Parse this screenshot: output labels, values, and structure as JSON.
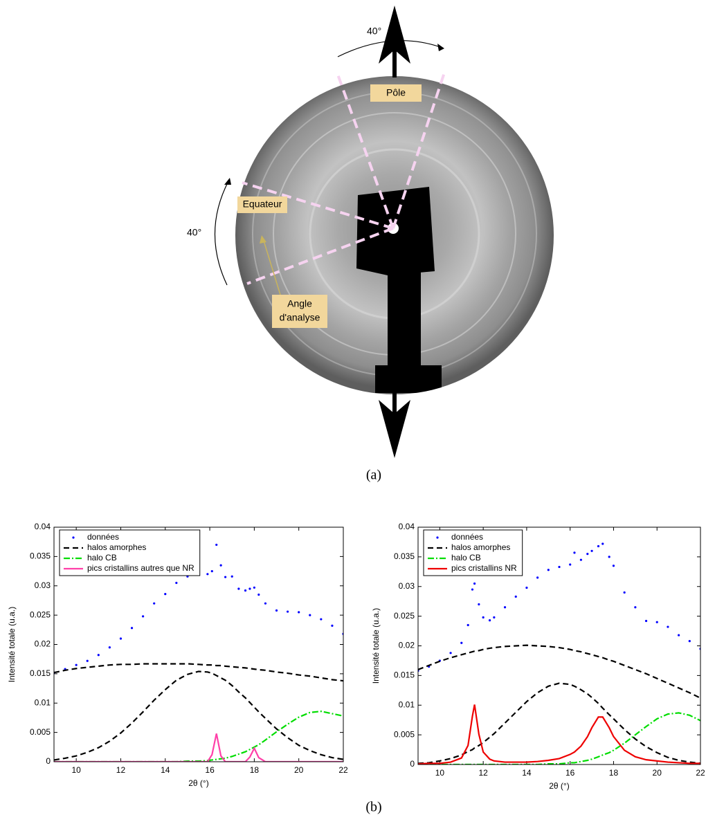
{
  "figure_a": {
    "rotation_top": "40°",
    "pole": "Pôle",
    "equator": "Equateur",
    "rotation_left": "40°",
    "analysis_angle": [
      "Angle",
      "d'analyse"
    ],
    "caption": "(a)"
  },
  "chart_data": [
    {
      "type": "line",
      "xlabel": "2θ (°)",
      "ylabel": "Intensité totale (u.a.)",
      "legend": "upper left",
      "xlim": [
        9,
        22
      ],
      "xticks": [
        10,
        12,
        14,
        16,
        18,
        20,
        22
      ],
      "ylim": [
        0,
        0.04
      ],
      "yticks": [
        0,
        0.005,
        0.01,
        0.015,
        0.02,
        0.025,
        0.03,
        0.035,
        0.04
      ],
      "x": [
        9,
        9.5,
        10,
        10.5,
        11,
        11.5,
        12,
        12.5,
        13,
        13.5,
        14,
        14.5,
        15,
        15.5,
        15.9,
        16.1,
        16.3,
        16.5,
        16.7,
        17,
        17.3,
        17.6,
        17.8,
        18,
        18.2,
        18.5,
        19,
        19.5,
        20,
        20.5,
        21,
        21.5,
        22
      ],
      "series": [
        {
          "name": "données",
          "color": "#0000ff",
          "style": "dots",
          "values": [
            0.0152,
            0.0158,
            0.0165,
            0.0172,
            0.0182,
            0.0195,
            0.021,
            0.0228,
            0.0248,
            0.027,
            0.0286,
            0.0305,
            0.0316,
            0.032,
            0.032,
            0.0325,
            0.037,
            0.0335,
            0.0315,
            0.0316,
            0.0295,
            0.0292,
            0.0295,
            0.0297,
            0.0285,
            0.027,
            0.0258,
            0.0256,
            0.0255,
            0.025,
            0.0243,
            0.0232,
            0.0218
          ]
        },
        {
          "name": "halos amorphes",
          "color": "#000000",
          "style": "dashed",
          "curves": [
            [
              0.0152,
              0.0156,
              0.0159,
              0.0161,
              0.0163,
              0.0165,
              0.0166,
              0.0166,
              0.0167,
              0.0167,
              0.0167,
              0.0167,
              0.0167,
              0.0166,
              0.0165,
              0.0165,
              0.0164,
              0.0164,
              0.0163,
              0.0162,
              0.0161,
              0.016,
              0.0159,
              0.0158,
              0.0157,
              0.0156,
              0.0153,
              0.0151,
              0.0148,
              0.0146,
              0.0143,
              0.014,
              0.0138
            ],
            [
              0.0003,
              0.0006,
              0.001,
              0.0016,
              0.0024,
              0.0035,
              0.0049,
              0.0066,
              0.0085,
              0.0105,
              0.0123,
              0.0139,
              0.0149,
              0.0154,
              0.0153,
              0.0151,
              0.0147,
              0.0143,
              0.0139,
              0.013,
              0.0119,
              0.0109,
              0.0101,
              0.0093,
              0.0085,
              0.0074,
              0.0056,
              0.0041,
              0.0028,
              0.0019,
              0.0012,
              0.0007,
              0.0004
            ]
          ]
        },
        {
          "name": "halo CB",
          "color": "#00dd00",
          "style": "dashdot",
          "values": [
            0,
            0,
            0,
            0,
            0,
            0,
            0,
            0,
            0,
            0,
            0,
            0,
            0.0001,
            0.0001,
            0.0002,
            0.0003,
            0.0004,
            0.0005,
            0.0006,
            0.0009,
            0.0013,
            0.0017,
            0.0021,
            0.0025,
            0.0029,
            0.0037,
            0.0051,
            0.0064,
            0.0076,
            0.0084,
            0.0086,
            0.0082,
            0.0078
          ]
        },
        {
          "name": "pics cristallins autres que NR",
          "color": "#ff3fa8",
          "style": "solid",
          "values": [
            0,
            0,
            0,
            0,
            0,
            0,
            0,
            0,
            0,
            0,
            0,
            0,
            0,
            0,
            0,
            0.0012,
            0.0048,
            0.001,
            0,
            0,
            0,
            0,
            0.0008,
            0.0023,
            0.0007,
            0,
            0,
            0,
            0,
            0,
            0,
            0,
            0
          ]
        }
      ]
    },
    {
      "type": "line",
      "xlabel": "2θ (°)",
      "ylabel": "Intensité totale (u.a.)",
      "legend": "upper left",
      "xlim": [
        9,
        22
      ],
      "xticks": [
        10,
        12,
        14,
        16,
        18,
        20,
        22
      ],
      "ylim": [
        0,
        0.04
      ],
      "yticks": [
        0,
        0.005,
        0.01,
        0.015,
        0.02,
        0.025,
        0.03,
        0.035,
        0.04
      ],
      "x": [
        9,
        9.5,
        10,
        10.5,
        11,
        11.3,
        11.5,
        11.6,
        11.8,
        12,
        12.3,
        12.5,
        13,
        13.5,
        14,
        14.5,
        15,
        15.5,
        16,
        16.2,
        16.5,
        16.8,
        17,
        17.3,
        17.5,
        17.8,
        18,
        18.5,
        19,
        19.5,
        20,
        20.5,
        21,
        21.5,
        22
      ],
      "series": [
        {
          "name": "données",
          "color": "#0000ff",
          "style": "dots",
          "values": [
            0.0158,
            0.0165,
            0.0175,
            0.0188,
            0.0205,
            0.0235,
            0.0295,
            0.0305,
            0.027,
            0.0248,
            0.0243,
            0.0248,
            0.0265,
            0.0283,
            0.0298,
            0.0315,
            0.0328,
            0.0333,
            0.0337,
            0.0357,
            0.0345,
            0.0355,
            0.036,
            0.0368,
            0.0372,
            0.035,
            0.0335,
            0.029,
            0.0265,
            0.0242,
            0.024,
            0.0232,
            0.0218,
            0.0208,
            0.0195
          ]
        },
        {
          "name": "halos amorphes",
          "color": "#000000",
          "style": "dashed",
          "curves": [
            [
              0.016,
              0.0167,
              0.0174,
              0.018,
              0.0185,
              0.0188,
              0.019,
              0.0191,
              0.0192,
              0.0194,
              0.0196,
              0.0197,
              0.0199,
              0.02,
              0.0201,
              0.02,
              0.0199,
              0.0197,
              0.0194,
              0.0192,
              0.019,
              0.0187,
              0.0185,
              0.0182,
              0.018,
              0.0176,
              0.0174,
              0.0167,
              0.016,
              0.0153,
              0.0145,
              0.0137,
              0.0129,
              0.0121,
              0.0112
            ],
            [
              0.0002,
              0.0003,
              0.0006,
              0.001,
              0.0016,
              0.0022,
              0.0025,
              0.0028,
              0.0032,
              0.0037,
              0.0046,
              0.0052,
              0.007,
              0.0088,
              0.0106,
              0.0121,
              0.0132,
              0.0137,
              0.0135,
              0.0132,
              0.0126,
              0.0119,
              0.0113,
              0.0103,
              0.0095,
              0.0084,
              0.0077,
              0.0059,
              0.0043,
              0.003,
              0.002,
              0.0012,
              0.0007,
              0.0004,
              0.0002
            ]
          ]
        },
        {
          "name": "halo CB",
          "color": "#00dd00",
          "style": "dashdot",
          "values": [
            0,
            0,
            0,
            0,
            0,
            0,
            0,
            0,
            0,
            0,
            0,
            0,
            0,
            0,
            0,
            0,
            0.0001,
            0.0001,
            0.0003,
            0.0003,
            0.0005,
            0.0007,
            0.0009,
            0.0013,
            0.0016,
            0.002,
            0.0024,
            0.0036,
            0.005,
            0.0064,
            0.0077,
            0.0085,
            0.0087,
            0.0083,
            0.0074
          ]
        },
        {
          "name": "pics cristallins NR",
          "color": "#ee0000",
          "style": "solid",
          "values": [
            0.0001,
            0.0002,
            0.0002,
            0.0004,
            0.0011,
            0.0032,
            0.0081,
            0.0101,
            0.0051,
            0.0021,
            0.0009,
            0.0006,
            0.0004,
            0.0004,
            0.0004,
            0.0005,
            0.0007,
            0.001,
            0.0017,
            0.0021,
            0.0031,
            0.0047,
            0.0062,
            0.008,
            0.008,
            0.0062,
            0.0047,
            0.0024,
            0.0013,
            0.0008,
            0.0006,
            0.0004,
            0.0003,
            0.0002,
            0.0002
          ]
        }
      ]
    }
  ],
  "figure_b": {
    "caption": "(b)"
  }
}
